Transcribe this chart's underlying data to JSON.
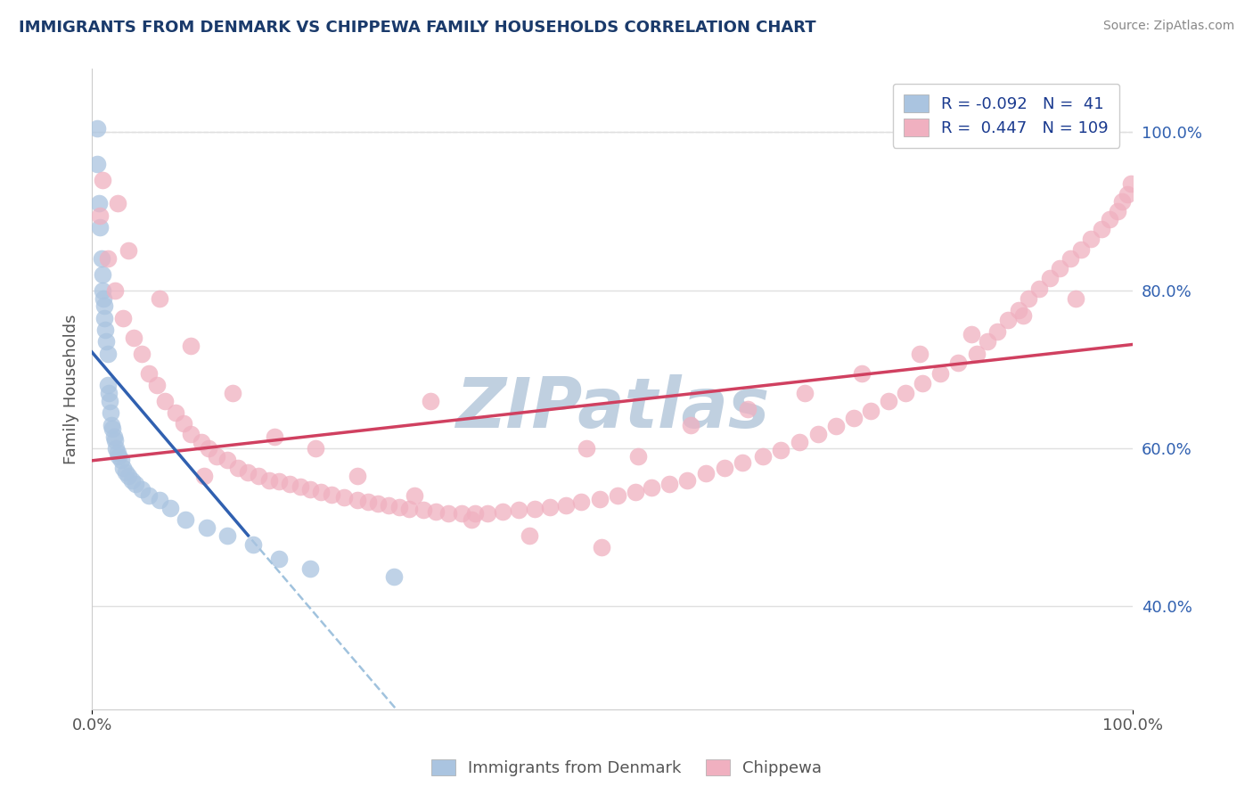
{
  "title": "IMMIGRANTS FROM DENMARK VS CHIPPEWA FAMILY HOUSEHOLDS CORRELATION CHART",
  "source": "Source: ZipAtlas.com",
  "ylabel": "Family Households",
  "legend_labels": [
    "Immigrants from Denmark",
    "Chippewa"
  ],
  "legend_r": [
    -0.092,
    0.447
  ],
  "legend_n": [
    41,
    109
  ],
  "blue_color": "#aac4e0",
  "pink_color": "#f0b0c0",
  "blue_line_color": "#3060b0",
  "pink_line_color": "#d04060",
  "dashed_line_color": "#90b8d8",
  "title_color": "#1a3a6b",
  "source_color": "#888888",
  "legend_r_color": "#1a3a8f",
  "xlim": [
    0.0,
    1.0
  ],
  "ylim": [
    0.27,
    1.08
  ],
  "blue_scatter_x": [
    0.005,
    0.005,
    0.007,
    0.008,
    0.009,
    0.01,
    0.01,
    0.011,
    0.012,
    0.012,
    0.013,
    0.014,
    0.015,
    0.015,
    0.016,
    0.017,
    0.018,
    0.019,
    0.02,
    0.021,
    0.022,
    0.023,
    0.025,
    0.026,
    0.028,
    0.03,
    0.032,
    0.035,
    0.038,
    0.042,
    0.048,
    0.055,
    0.065,
    0.075,
    0.09,
    0.11,
    0.13,
    0.155,
    0.18,
    0.21,
    0.29
  ],
  "blue_scatter_y": [
    1.005,
    0.96,
    0.91,
    0.88,
    0.84,
    0.82,
    0.8,
    0.79,
    0.78,
    0.765,
    0.75,
    0.735,
    0.72,
    0.68,
    0.67,
    0.66,
    0.645,
    0.63,
    0.625,
    0.615,
    0.61,
    0.6,
    0.595,
    0.59,
    0.585,
    0.575,
    0.57,
    0.565,
    0.56,
    0.555,
    0.548,
    0.54,
    0.535,
    0.525,
    0.51,
    0.5,
    0.49,
    0.478,
    0.46,
    0.448,
    0.438
  ],
  "pink_scatter_x": [
    0.008,
    0.015,
    0.022,
    0.03,
    0.04,
    0.048,
    0.055,
    0.062,
    0.07,
    0.08,
    0.088,
    0.095,
    0.105,
    0.112,
    0.12,
    0.13,
    0.14,
    0.15,
    0.16,
    0.17,
    0.18,
    0.19,
    0.2,
    0.21,
    0.22,
    0.23,
    0.242,
    0.255,
    0.265,
    0.275,
    0.285,
    0.295,
    0.305,
    0.318,
    0.33,
    0.342,
    0.355,
    0.368,
    0.38,
    0.395,
    0.41,
    0.425,
    0.44,
    0.455,
    0.47,
    0.488,
    0.505,
    0.522,
    0.538,
    0.555,
    0.572,
    0.59,
    0.608,
    0.625,
    0.645,
    0.662,
    0.68,
    0.698,
    0.715,
    0.732,
    0.748,
    0.765,
    0.782,
    0.798,
    0.815,
    0.832,
    0.85,
    0.86,
    0.87,
    0.88,
    0.89,
    0.9,
    0.91,
    0.92,
    0.93,
    0.94,
    0.95,
    0.96,
    0.97,
    0.978,
    0.985,
    0.99,
    0.995,
    0.998,
    0.01,
    0.025,
    0.035,
    0.065,
    0.095,
    0.135,
    0.175,
    0.215,
    0.255,
    0.31,
    0.365,
    0.42,
    0.475,
    0.525,
    0.575,
    0.63,
    0.685,
    0.74,
    0.795,
    0.845,
    0.895,
    0.945,
    0.108,
    0.325,
    0.49
  ],
  "pink_scatter_y": [
    0.895,
    0.84,
    0.8,
    0.765,
    0.74,
    0.72,
    0.695,
    0.68,
    0.66,
    0.645,
    0.632,
    0.618,
    0.608,
    0.6,
    0.59,
    0.585,
    0.575,
    0.57,
    0.565,
    0.56,
    0.558,
    0.555,
    0.552,
    0.548,
    0.545,
    0.542,
    0.538,
    0.535,
    0.532,
    0.53,
    0.528,
    0.526,
    0.524,
    0.522,
    0.52,
    0.518,
    0.518,
    0.518,
    0.518,
    0.52,
    0.522,
    0.524,
    0.526,
    0.528,
    0.532,
    0.536,
    0.54,
    0.545,
    0.55,
    0.555,
    0.56,
    0.568,
    0.575,
    0.582,
    0.59,
    0.598,
    0.608,
    0.618,
    0.628,
    0.638,
    0.648,
    0.66,
    0.67,
    0.682,
    0.695,
    0.708,
    0.72,
    0.735,
    0.748,
    0.762,
    0.775,
    0.79,
    0.802,
    0.815,
    0.828,
    0.84,
    0.852,
    0.865,
    0.878,
    0.89,
    0.9,
    0.912,
    0.922,
    0.935,
    0.94,
    0.91,
    0.85,
    0.79,
    0.73,
    0.67,
    0.615,
    0.6,
    0.565,
    0.54,
    0.51,
    0.49,
    0.6,
    0.59,
    0.63,
    0.65,
    0.67,
    0.695,
    0.72,
    0.745,
    0.768,
    0.79,
    0.565,
    0.66,
    0.475
  ],
  "watermark": "ZIPatlas",
  "watermark_color": "#c0d0e0",
  "grid_color": "#e0e0e0",
  "ytick_labels_right": [
    "100.0%",
    "80.0%",
    "60.0%",
    "40.0%"
  ],
  "ytick_values": [
    1.0,
    0.8,
    0.6,
    0.4
  ],
  "xtick_labels": [
    "0.0%",
    "100.0%"
  ],
  "xtick_values": [
    0.0,
    1.0
  ],
  "blue_trend_x0": 0.0,
  "blue_trend_x1": 0.15,
  "pink_trend_x0": 0.0,
  "pink_trend_x1": 1.0
}
